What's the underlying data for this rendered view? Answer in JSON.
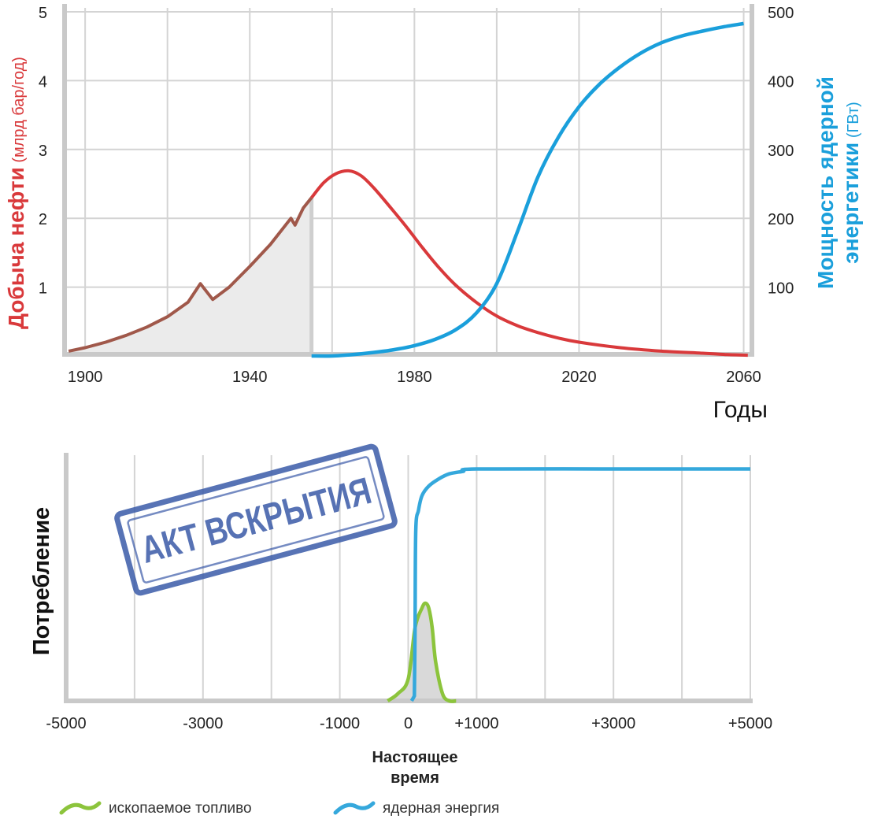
{
  "chart_data": [
    {
      "type": "line",
      "title": "",
      "xlabel": "Годы",
      "ylabel_left": {
        "bold": "Добыча нефти",
        "rest": " (млрд бар/год)",
        "color": "#d9393b"
      },
      "ylabel_right": {
        "line1": "Мощность ядерной",
        "line2_bold": "энергетики",
        "line2_rest": " (ГВт)",
        "color": "#1a9fdb"
      },
      "xlim": [
        1895,
        2062
      ],
      "ylim_left": [
        0,
        5
      ],
      "ylim_right": [
        0,
        500
      ],
      "x_ticks": [
        1900,
        1940,
        1980,
        2020,
        2060
      ],
      "x_grid": [
        1900,
        1920,
        1940,
        1960,
        1980,
        2000,
        2020,
        2040,
        2060
      ],
      "y_ticks_left": [
        1,
        2,
        3,
        4,
        5
      ],
      "y_ticks_right": [
        100,
        200,
        300,
        400,
        500
      ],
      "grid": true,
      "shaded_until": 1955,
      "series": [
        {
          "axis": "left",
          "color_historic": "#a0584a",
          "color_forecast": "#d9393b",
          "x": [
            1896,
            1900,
            1905,
            1910,
            1915,
            1920,
            1925,
            1928,
            1931,
            1935,
            1940,
            1945,
            1950,
            1951,
            1953,
            1955,
            1958,
            1961,
            1964,
            1967,
            1970,
            1974,
            1978,
            1982,
            1986,
            1990,
            1995,
            2000,
            2005,
            2010,
            2015,
            2020,
            2030,
            2040,
            2050,
            2056,
            2061
          ],
          "values": [
            0.07,
            0.12,
            0.2,
            0.3,
            0.42,
            0.57,
            0.78,
            1.05,
            0.82,
            1.0,
            1.3,
            1.62,
            2.0,
            1.9,
            2.15,
            2.3,
            2.52,
            2.65,
            2.69,
            2.62,
            2.45,
            2.17,
            1.88,
            1.57,
            1.28,
            1.03,
            0.78,
            0.58,
            0.44,
            0.34,
            0.26,
            0.2,
            0.12,
            0.07,
            0.04,
            0.02,
            0.01
          ]
        },
        {
          "axis": "right",
          "color": "#1a9fdb",
          "x": [
            1955,
            1960,
            1965,
            1970,
            1975,
            1980,
            1985,
            1990,
            1995,
            2000,
            2005,
            2010,
            2015,
            2020,
            2025,
            2030,
            2035,
            2040,
            2045,
            2050,
            2055,
            2060
          ],
          "values": [
            0,
            0,
            2,
            5,
            9,
            15,
            24,
            38,
            62,
            105,
            180,
            260,
            318,
            362,
            395,
            420,
            440,
            455,
            465,
            472,
            478,
            483
          ]
        }
      ]
    },
    {
      "type": "line",
      "title": "",
      "xlabel": "Настоящее время",
      "xlabel_line1": "Настоящее",
      "xlabel_line2": "время",
      "ylabel": "Потребление",
      "xlim": [
        -5000,
        5000
      ],
      "ylim": [
        0,
        1
      ],
      "x_ticks": [
        -5000,
        -3000,
        -1000,
        0,
        1000,
        3000,
        5000
      ],
      "x_tick_labels": [
        "-5000",
        "-3000",
        "-1000",
        "0",
        "+1000",
        "+3000",
        "+5000"
      ],
      "x_grid": [
        -4000,
        -3000,
        -2000,
        -1000,
        0,
        1000,
        2000,
        3000,
        4000,
        5000
      ],
      "grid": true,
      "series": [
        {
          "name": "ископаемое топливо",
          "color": "#8cc43c",
          "x": [
            -300,
            -150,
            0,
            100,
            200,
            250,
            300,
            350,
            400,
            500,
            600,
            700
          ],
          "values": [
            0,
            0.03,
            0.09,
            0.3,
            0.38,
            0.4,
            0.38,
            0.3,
            0.16,
            0.03,
            0,
            0
          ]
        },
        {
          "name": "ядерная энергия",
          "color": "#35a8dc",
          "x": [
            50,
            90,
            100,
            110,
            150,
            200,
            300,
            450,
            600,
            800,
            1000,
            3000,
            5000
          ],
          "values": [
            0,
            0.02,
            0.3,
            0.7,
            0.78,
            0.84,
            0.88,
            0.91,
            0.93,
            0.94,
            0.95,
            0.95,
            0.95
          ]
        }
      ]
    }
  ],
  "stamp": {
    "text": "АКТ ВСКРЫТИЯ",
    "color": "#3a5aa8"
  },
  "legend": [
    {
      "label": "ископаемое топливо",
      "color": "#8cc43c"
    },
    {
      "label": "ядерная энергия",
      "color": "#35a8dc"
    }
  ]
}
